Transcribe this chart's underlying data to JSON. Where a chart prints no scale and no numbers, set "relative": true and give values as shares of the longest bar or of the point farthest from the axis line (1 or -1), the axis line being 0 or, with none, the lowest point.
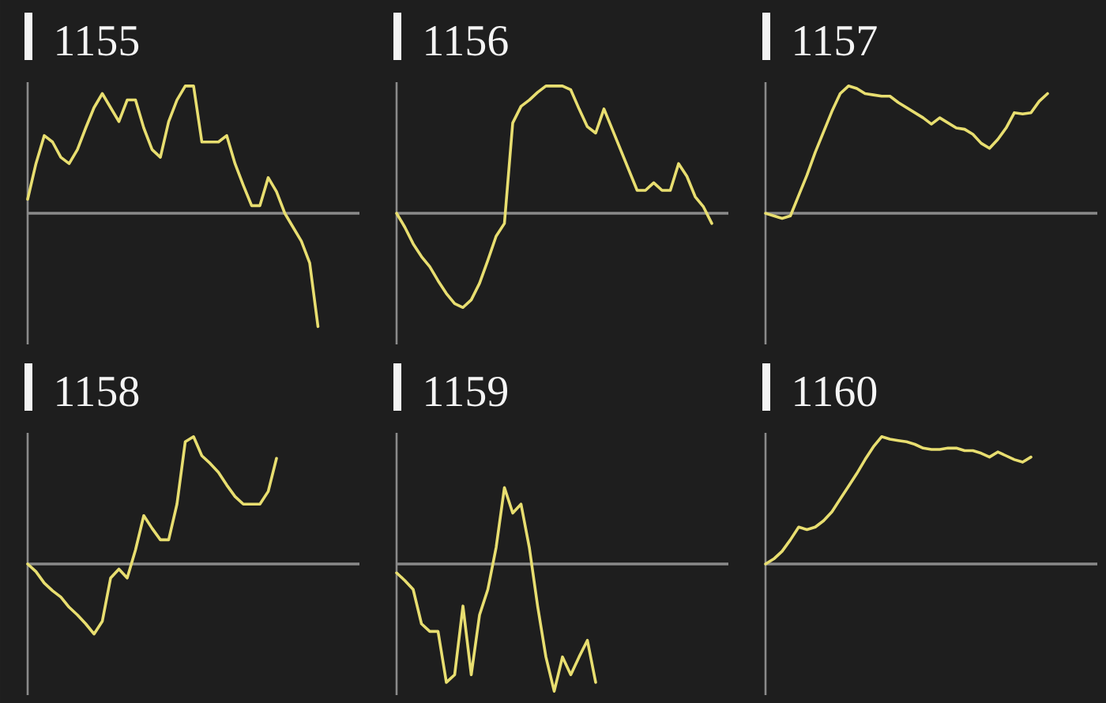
{
  "chart_data": [
    {
      "type": "line",
      "title": "1155",
      "relative": true,
      "categories": [
        null,
        null,
        null,
        null,
        null,
        null,
        null,
        null,
        null,
        null,
        null,
        null,
        null,
        null,
        null,
        null,
        null,
        null,
        null,
        null,
        null,
        null,
        null,
        null,
        null,
        null,
        null,
        null,
        null,
        null,
        null,
        null,
        null,
        null,
        null,
        null,
        null,
        null,
        null,
        null,
        null
      ],
      "series": [
        {
          "color": "#e8de70",
          "values": [
            0.11,
            0.39,
            0.61,
            0.56,
            0.44,
            0.39,
            0.5,
            0.67,
            0.83,
            0.94,
            0.83,
            0.72,
            0.89,
            0.89,
            0.67,
            0.5,
            0.44,
            0.72,
            0.89,
            1,
            1,
            0.56,
            0.56,
            0.56,
            0.61,
            0.39,
            0.22,
            0.06,
            0.06,
            0.28,
            0.17,
            0,
            -0.11,
            -0.22,
            -0.39,
            -0.89,
            null,
            null,
            null,
            null,
            null
          ]
        }
      ]
    },
    {
      "type": "line",
      "title": "1156",
      "relative": true,
      "categories": [
        null,
        null,
        null,
        null,
        null,
        null,
        null,
        null,
        null,
        null,
        null,
        null,
        null,
        null,
        null,
        null,
        null,
        null,
        null,
        null,
        null,
        null,
        null,
        null,
        null,
        null,
        null,
        null,
        null,
        null,
        null,
        null,
        null,
        null,
        null,
        null,
        null,
        null,
        null,
        null,
        null
      ],
      "series": [
        {
          "color": "#e8de70",
          "values": [
            0,
            -0.11,
            -0.24,
            -0.34,
            -0.42,
            -0.53,
            -0.63,
            -0.71,
            -0.74,
            -0.68,
            -0.55,
            -0.37,
            -0.18,
            -0.08,
            0.71,
            0.84,
            0.89,
            0.95,
            1,
            1,
            1,
            0.97,
            0.82,
            0.68,
            0.63,
            0.82,
            0.66,
            0.5,
            0.34,
            0.18,
            0.18,
            0.24,
            0.18,
            0.18,
            0.39,
            0.29,
            0.13,
            0.05,
            -0.08,
            null,
            null
          ]
        }
      ]
    },
    {
      "type": "line",
      "title": "1157",
      "relative": true,
      "categories": [
        null,
        null,
        null,
        null,
        null,
        null,
        null,
        null,
        null,
        null,
        null,
        null,
        null,
        null,
        null,
        null,
        null,
        null,
        null,
        null,
        null,
        null,
        null,
        null,
        null,
        null,
        null,
        null,
        null,
        null,
        null,
        null,
        null,
        null,
        null,
        null,
        null,
        null,
        null,
        null,
        null
      ],
      "series": [
        {
          "color": "#e8de70",
          "values": [
            0,
            -0.02,
            -0.04,
            -0.02,
            0.14,
            0.3,
            0.48,
            0.64,
            0.8,
            0.94,
            1,
            0.98,
            0.94,
            0.93,
            0.92,
            0.92,
            0.87,
            0.83,
            0.79,
            0.75,
            0.7,
            0.75,
            0.71,
            0.67,
            0.66,
            0.62,
            0.55,
            0.51,
            0.58,
            0.67,
            0.79,
            0.78,
            0.79,
            0.88,
            0.94,
            null,
            null,
            null,
            null,
            null,
            null
          ]
        }
      ]
    },
    {
      "type": "line",
      "title": "1158",
      "relative": true,
      "categories": [
        null,
        null,
        null,
        null,
        null,
        null,
        null,
        null,
        null,
        null,
        null,
        null,
        null,
        null,
        null,
        null,
        null,
        null,
        null,
        null,
        null,
        null,
        null,
        null,
        null,
        null,
        null,
        null,
        null,
        null,
        null,
        null,
        null,
        null,
        null,
        null,
        null,
        null,
        null,
        null,
        null
      ],
      "series": [
        {
          "color": "#e8de70",
          "values": [
            0,
            -0.06,
            -0.15,
            -0.21,
            -0.26,
            -0.34,
            -0.4,
            -0.47,
            -0.55,
            -0.45,
            -0.11,
            -0.04,
            -0.11,
            0.11,
            0.38,
            0.28,
            0.19,
            0.19,
            0.47,
            0.96,
            1,
            0.85,
            0.79,
            0.72,
            0.62,
            0.53,
            0.47,
            0.47,
            0.47,
            0.57,
            0.83,
            null,
            null,
            null,
            null,
            null,
            null,
            null,
            null,
            null,
            null
          ]
        }
      ]
    },
    {
      "type": "line",
      "title": "1159",
      "relative": true,
      "categories": [
        null,
        null,
        null,
        null,
        null,
        null,
        null,
        null,
        null,
        null,
        null,
        null,
        null,
        null,
        null,
        null,
        null,
        null,
        null,
        null,
        null,
        null,
        null,
        null,
        null,
        null,
        null,
        null,
        null,
        null,
        null,
        null,
        null,
        null,
        null,
        null,
        null,
        null,
        null,
        null,
        null
      ],
      "series": [
        {
          "color": "#e8de70",
          "values": [
            -0.07,
            -0.13,
            -0.2,
            -0.47,
            -0.53,
            -0.53,
            -0.93,
            -0.87,
            -0.33,
            -0.87,
            -0.4,
            -0.2,
            0.13,
            0.6,
            0.4,
            0.47,
            0.13,
            -0.33,
            -0.73,
            -1,
            -0.73,
            -0.87,
            -0.73,
            -0.6,
            -0.93,
            null,
            null,
            null,
            null,
            null,
            null,
            null,
            null,
            null,
            null,
            null,
            null,
            null,
            null,
            null,
            null
          ]
        }
      ]
    },
    {
      "type": "line",
      "title": "1160",
      "relative": true,
      "categories": [
        null,
        null,
        null,
        null,
        null,
        null,
        null,
        null,
        null,
        null,
        null,
        null,
        null,
        null,
        null,
        null,
        null,
        null,
        null,
        null,
        null,
        null,
        null,
        null,
        null,
        null,
        null,
        null,
        null,
        null,
        null,
        null,
        null,
        null,
        null,
        null,
        null,
        null,
        null,
        null,
        null
      ],
      "series": [
        {
          "color": "#e8de70",
          "values": [
            0,
            0.04,
            0.1,
            0.19,
            0.29,
            0.27,
            0.29,
            0.34,
            0.41,
            0.51,
            0.61,
            0.71,
            0.82,
            0.92,
            1,
            0.98,
            0.97,
            0.96,
            0.94,
            0.91,
            0.9,
            0.9,
            0.91,
            0.91,
            0.89,
            0.89,
            0.87,
            0.84,
            0.88,
            0.85,
            0.82,
            0.8,
            0.84,
            null,
            null,
            null,
            null,
            null,
            null,
            null,
            null
          ]
        }
      ]
    }
  ]
}
